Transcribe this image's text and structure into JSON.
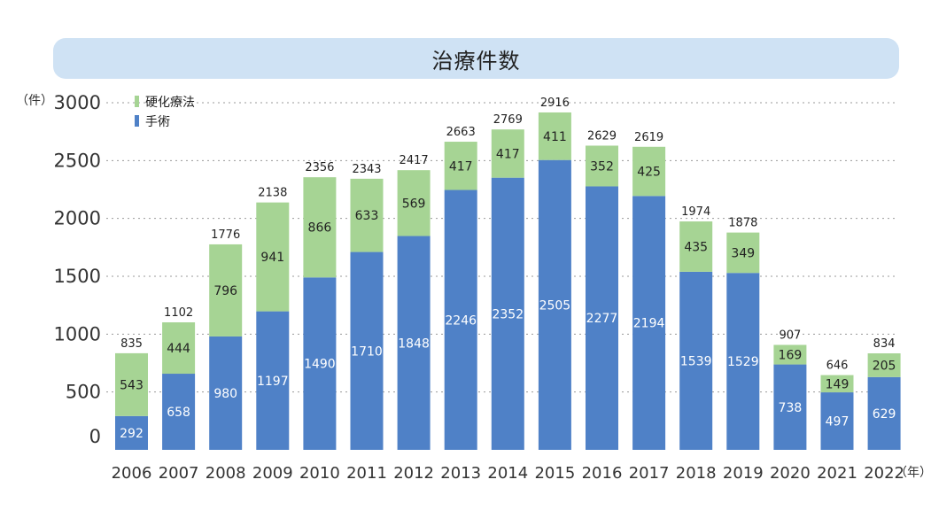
{
  "title": "治療件数",
  "chart_data": {
    "type": "bar",
    "stacked": true,
    "title": "治療件数",
    "y_unit": "（件）",
    "x_unit": "（年）",
    "ylim": [
      0,
      3000
    ],
    "yticks": [
      0,
      500,
      1000,
      1500,
      2000,
      2500,
      3000
    ],
    "grid": "dotted horizontal",
    "legend_position": "top-left",
    "categories": [
      "2006",
      "2007",
      "2008",
      "2009",
      "2010",
      "2011",
      "2012",
      "2013",
      "2014",
      "2015",
      "2016",
      "2017",
      "2018",
      "2019",
      "2020",
      "2021",
      "2022"
    ],
    "series": [
      {
        "name": "手術",
        "color": "#4f81c7",
        "values": [
          292,
          658,
          980,
          1197,
          1490,
          1710,
          1848,
          2246,
          2352,
          2505,
          2277,
          2194,
          1539,
          1529,
          738,
          497,
          629
        ]
      },
      {
        "name": "硬化療法",
        "color": "#a6d494",
        "values": [
          543,
          444,
          796,
          941,
          866,
          633,
          569,
          417,
          417,
          411,
          352,
          425,
          435,
          349,
          169,
          149,
          205
        ]
      }
    ],
    "totals": [
      835,
      1102,
      1776,
      2138,
      2356,
      2343,
      2417,
      2663,
      2769,
      2916,
      2629,
      2619,
      1974,
      1878,
      907,
      646,
      834
    ]
  }
}
